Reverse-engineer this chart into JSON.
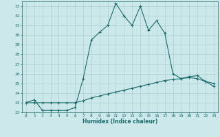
{
  "title": "",
  "xlabel": "Humidex (Indice chaleur)",
  "ylabel": "",
  "xlim": [
    -0.5,
    23.5
  ],
  "ylim": [
    22,
    33.5
  ],
  "yticks": [
    22,
    23,
    24,
    25,
    26,
    27,
    28,
    29,
    30,
    31,
    32,
    33
  ],
  "xticks": [
    0,
    1,
    2,
    3,
    4,
    5,
    6,
    7,
    8,
    9,
    10,
    11,
    12,
    13,
    14,
    15,
    16,
    17,
    18,
    19,
    20,
    21,
    22,
    23
  ],
  "bg_color": "#cce8ea",
  "grid_color": "#a8cdd0",
  "line_color": "#1a6b6b",
  "curve1_x": [
    0,
    1,
    2,
    3,
    4,
    5,
    6,
    7,
    8,
    9,
    10,
    11,
    12,
    13,
    14,
    15,
    16,
    17,
    18,
    19,
    20,
    21,
    22,
    23
  ],
  "curve1_y": [
    23.0,
    23.3,
    22.2,
    22.2,
    22.2,
    22.2,
    22.5,
    25.5,
    29.5,
    30.3,
    31.0,
    33.3,
    32.0,
    31.0,
    33.0,
    30.5,
    31.5,
    30.2,
    26.0,
    25.5,
    25.7,
    25.8,
    25.2,
    25.0
  ],
  "curve2_x": [
    0,
    1,
    2,
    3,
    4,
    5,
    6,
    7,
    8,
    9,
    10,
    11,
    12,
    13,
    14,
    15,
    16,
    17,
    18,
    19,
    20,
    21,
    22,
    23
  ],
  "curve2_y": [
    23.0,
    23.0,
    23.0,
    23.0,
    23.0,
    23.0,
    23.0,
    23.2,
    23.5,
    23.7,
    23.9,
    24.1,
    24.3,
    24.5,
    24.7,
    24.9,
    25.1,
    25.3,
    25.4,
    25.5,
    25.6,
    25.5,
    25.2,
    24.7
  ]
}
